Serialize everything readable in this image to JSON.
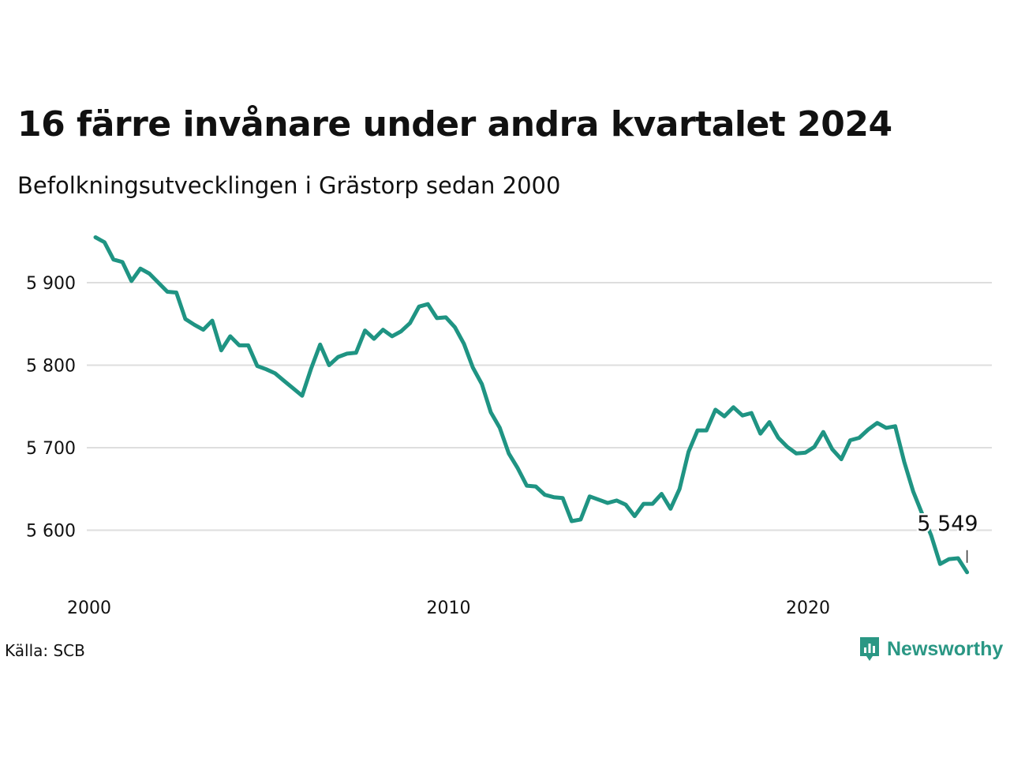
{
  "title": "16 färre invånare under andra kvartalet 2024",
  "subtitle": "Befolkningsutvecklingen i Grästorp sedan 2000",
  "source": "Källa: SCB",
  "brand": "Newsworthy",
  "colors": {
    "line": "#1f9483",
    "grid": "#dedede",
    "text": "#111111",
    "brand": "#2a9784"
  },
  "chart_data": {
    "type": "line",
    "xlim": [
      2000,
      2025
    ],
    "ylim": [
      5540,
      5960
    ],
    "x_ticks": [
      2000,
      2010,
      2020
    ],
    "x_tick_labels": [
      "2000",
      "2010",
      "2020"
    ],
    "y_ticks": [
      5600,
      5700,
      5800,
      5900
    ],
    "y_tick_labels": [
      "5 600",
      "5 700",
      "5 800",
      "5 900"
    ],
    "grid": true,
    "last_value_label": "5 549",
    "x": [
      2000.0,
      2000.25,
      2000.5,
      2000.75,
      2001.0,
      2001.25,
      2001.5,
      2001.75,
      2002.0,
      2002.25,
      2002.5,
      2002.75,
      2003.0,
      2003.25,
      2003.5,
      2003.75,
      2004.0,
      2004.25,
      2004.5,
      2004.75,
      2005.0,
      2005.25,
      2005.5,
      2005.75,
      2006.0,
      2006.25,
      2006.5,
      2006.75,
      2007.0,
      2007.25,
      2007.5,
      2007.75,
      2008.0,
      2008.25,
      2008.5,
      2008.75,
      2009.0,
      2009.25,
      2009.5,
      2009.75,
      2010.0,
      2010.25,
      2010.5,
      2010.75,
      2011.0,
      2011.25,
      2011.5,
      2011.75,
      2012.0,
      2012.25,
      2012.5,
      2012.75,
      2013.0,
      2013.25,
      2013.5,
      2013.75,
      2014.0,
      2014.25,
      2014.5,
      2014.75,
      2015.0,
      2015.25,
      2015.5,
      2015.75,
      2016.0,
      2016.25,
      2016.5,
      2016.75,
      2017.0,
      2017.25,
      2017.5,
      2017.75,
      2018.0,
      2018.25,
      2018.5,
      2018.75,
      2019.0,
      2019.25,
      2019.5,
      2019.75,
      2020.0,
      2020.25,
      2020.5,
      2020.75,
      2021.0,
      2021.25,
      2021.5,
      2021.75,
      2022.0,
      2022.25,
      2022.5,
      2022.75,
      2023.0,
      2023.25,
      2023.5,
      2023.75,
      2024.0,
      2024.25
    ],
    "values": [
      5955,
      5949,
      5928,
      5925,
      5902,
      5917,
      5911,
      5900,
      5889,
      5888,
      5856,
      5849,
      5843,
      5854,
      5818,
      5835,
      5824,
      5824,
      5799,
      5795,
      5790,
      5781,
      5772,
      5763,
      5796,
      5825,
      5800,
      5810,
      5814,
      5815,
      5842,
      5832,
      5843,
      5835,
      5841,
      5851,
      5871,
      5874,
      5857,
      5858,
      5846,
      5826,
      5797,
      5777,
      5743,
      5724,
      5693,
      5675,
      5654,
      5653,
      5643,
      5640,
      5639,
      5611,
      5613,
      5641,
      5637,
      5633,
      5636,
      5631,
      5617,
      5632,
      5632,
      5644,
      5626,
      5650,
      5695,
      5721,
      5721,
      5746,
      5738,
      5749,
      5739,
      5742,
      5717,
      5731,
      5712,
      5701,
      5693,
      5694,
      5701,
      5719,
      5698,
      5686,
      5709,
      5712,
      5722,
      5730,
      5724,
      5726,
      5683,
      5647,
      5620,
      5594,
      5559,
      5565,
      5566,
      5549
    ]
  }
}
